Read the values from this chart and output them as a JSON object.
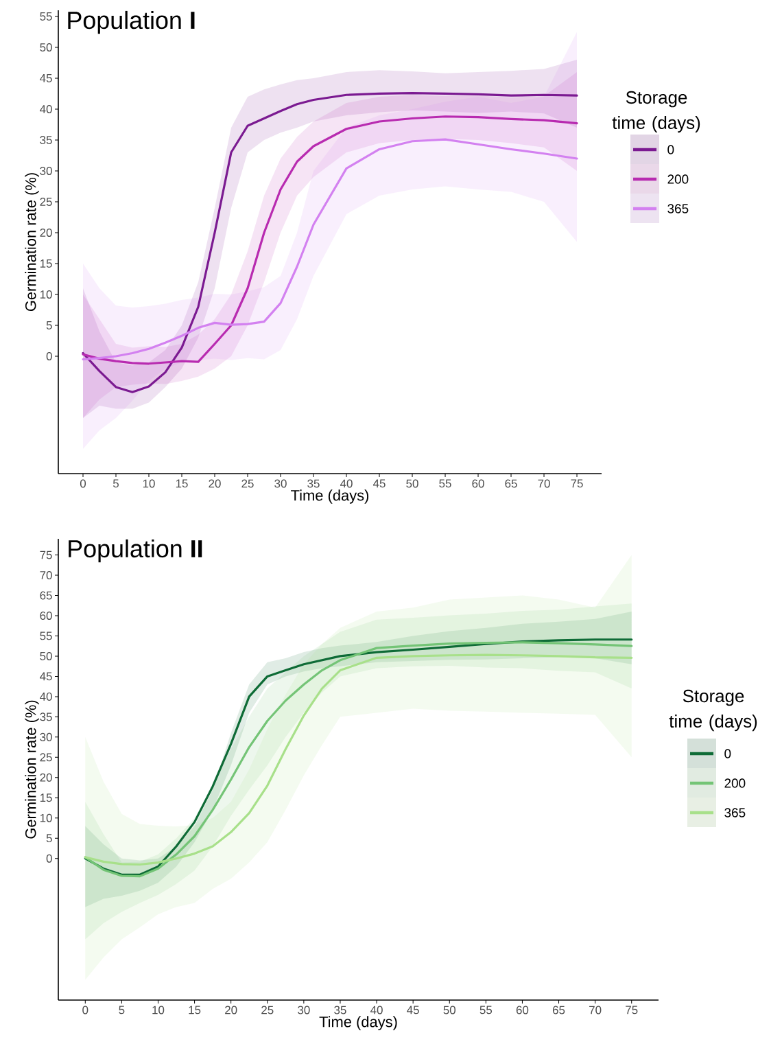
{
  "chart_data": [
    {
      "type": "line",
      "title": "Population **I**",
      "xlabel": "Time (days)",
      "ylabel": "Germination rate (%)",
      "legend_title": "Storage time (days)",
      "legend": "top right",
      "xlim": [
        -3.75,
        78.75
      ],
      "ylim": [
        -19,
        56
      ],
      "xticks": [
        0,
        5,
        10,
        15,
        20,
        25,
        30,
        35,
        40,
        45,
        50,
        55,
        60,
        65,
        70,
        75
      ],
      "yticks": [
        0,
        5,
        10,
        15,
        20,
        25,
        30,
        35,
        40,
        45,
        50,
        55
      ],
      "x": [
        0,
        2.5,
        5,
        7.5,
        10,
        12.5,
        15,
        17.5,
        20,
        22.5,
        25,
        27.5,
        30,
        32.5,
        35,
        40,
        45,
        50,
        55,
        60,
        65,
        70,
        75
      ],
      "series": [
        {
          "name": "0",
          "color": "#7b1a91",
          "values": [
            0.5,
            -2.4,
            -5.0,
            -5.8,
            -4.9,
            -2.6,
            1.4,
            8,
            20,
            33,
            37.3,
            38.5,
            39.7,
            40.8,
            41.5,
            42.3,
            42.5,
            42.6,
            42.5,
            42.4,
            42.2,
            42.3,
            42.2
          ],
          "lower": [
            -10,
            -8,
            -8.5,
            -8.5,
            -7.5,
            -5,
            -2,
            3,
            11,
            24,
            33,
            35,
            36.2,
            37,
            38,
            39,
            39.5,
            39.8,
            39.6,
            39.4,
            39.6,
            39.3,
            37
          ],
          "upper": [
            11,
            4,
            -1,
            -1.5,
            -1,
            1,
            5,
            12,
            24,
            37,
            42,
            43.2,
            44,
            44.7,
            45,
            46,
            46.3,
            46.1,
            45.8,
            46,
            46.2,
            46.5,
            48
          ]
        },
        {
          "name": "200",
          "color": "#b82bb0",
          "values": [
            0.3,
            -0.4,
            -0.8,
            -1.1,
            -1.2,
            -1.0,
            -0.8,
            -0.9,
            2,
            5,
            11,
            20,
            27,
            31.5,
            34,
            36.8,
            38,
            38.5,
            38.8,
            38.7,
            38.4,
            38.2,
            37.7
          ],
          "lower": [
            -10,
            -7,
            -5,
            -4.6,
            -4.4,
            -4.5,
            -4,
            -3.3,
            -2,
            0,
            5,
            12,
            20,
            26,
            29,
            33,
            34.5,
            35,
            35.2,
            35,
            34.5,
            33.8,
            30
          ],
          "upper": [
            10,
            6,
            2,
            1.4,
            1.6,
            1.5,
            2,
            3.5,
            6,
            10,
            17,
            26,
            32,
            35.5,
            38,
            41,
            42,
            42.3,
            42.1,
            42.2,
            41.9,
            42.1,
            46
          ]
        },
        {
          "name": "365",
          "color": "#d381f0",
          "values": [
            -0.5,
            -0.3,
            0,
            0.5,
            1.2,
            2.2,
            3.3,
            4.6,
            5.4,
            5.1,
            5.2,
            5.6,
            8.6,
            14.5,
            21.3,
            30.4,
            33.5,
            34.8,
            35.1,
            34.3,
            33.5,
            32.8,
            32.0
          ],
          "lower": [
            -15,
            -12,
            -10,
            -7.2,
            -4,
            -2,
            -1,
            -0.6,
            -0.4,
            -0.6,
            -0.3,
            -0.5,
            1,
            6,
            13,
            23,
            26,
            27,
            27.5,
            27,
            26.6,
            25,
            18.5
          ],
          "upper": [
            15,
            11,
            8.2,
            7.9,
            8.1,
            8.5,
            9.1,
            9.5,
            10.1,
            10,
            10.5,
            11.2,
            13,
            20,
            30,
            37,
            39,
            40,
            41.2,
            42,
            41,
            42,
            52.5
          ]
        }
      ]
    },
    {
      "type": "line",
      "title": "Population **II**",
      "xlabel": "Time (days)",
      "ylabel": "Germination rate (%)",
      "legend_title": "Storage time (days)",
      "legend": "right",
      "xlim": [
        -3.7,
        78.7
      ],
      "ylim": [
        -35,
        79
      ],
      "xticks": [
        0,
        5,
        10,
        15,
        20,
        25,
        30,
        35,
        40,
        45,
        50,
        55,
        60,
        65,
        70,
        75
      ],
      "yticks": [
        0,
        5,
        10,
        15,
        20,
        25,
        30,
        35,
        40,
        45,
        50,
        55,
        60,
        65,
        70,
        75
      ],
      "x": [
        0,
        2.5,
        5,
        7.5,
        10,
        12.5,
        15,
        17.5,
        20,
        22.5,
        25,
        27.5,
        30,
        32.5,
        35,
        40,
        45,
        50,
        55,
        60,
        65,
        70,
        75
      ],
      "series": [
        {
          "name": "0",
          "color": "#0e6b36",
          "values": [
            0,
            -2.5,
            -4,
            -4,
            -2,
            3,
            9,
            17.8,
            28.3,
            40,
            45,
            46.5,
            48,
            49,
            50,
            51,
            51.6,
            52.3,
            53,
            53.6,
            53.9,
            54.1,
            54.1
          ],
          "lower": [
            -12,
            -10,
            -9.2,
            -8,
            -6,
            -2,
            4,
            12,
            23,
            36,
            43,
            45,
            46.2,
            47,
            47.5,
            48.5,
            48.8,
            49.1,
            49.2,
            49.5,
            49.7,
            49.5,
            48
          ],
          "upper": [
            8,
            3.5,
            0,
            -0.5,
            0,
            3,
            8,
            17,
            31,
            43,
            48.5,
            49.5,
            51,
            52,
            52.6,
            53.5,
            55,
            56.2,
            57,
            58,
            58.5,
            59.2,
            61
          ]
        },
        {
          "name": "200",
          "color": "#74c476",
          "values": [
            0.3,
            -2.8,
            -4.3,
            -4.4,
            -2.5,
            1,
            5.5,
            12,
            19.5,
            27.5,
            34,
            39,
            43,
            46.5,
            49,
            52,
            52.6,
            53.1,
            53.3,
            53.4,
            53.2,
            52.9,
            52.5
          ],
          "lower": [
            -20,
            -16,
            -13.2,
            -11,
            -9,
            -6.3,
            -3,
            3,
            10.5,
            17,
            23,
            30,
            36,
            41,
            45,
            47,
            47.5,
            47.6,
            47.2,
            47,
            46.4,
            46,
            42
          ],
          "upper": [
            14,
            6,
            -1,
            -0.8,
            1,
            5,
            10,
            18,
            27,
            35,
            42,
            46,
            50,
            53,
            56,
            59,
            59.5,
            60.1,
            60.5,
            61.2,
            61.5,
            62.3,
            63
          ]
        },
        {
          "name": "365",
          "color": "#a8e08a",
          "values": [
            0.3,
            -0.8,
            -1.4,
            -1.5,
            -1,
            0,
            1.2,
            3,
            6.5,
            11.2,
            18,
            27,
            35.3,
            42,
            46.5,
            49.6,
            50,
            50.2,
            50.3,
            50.2,
            50,
            49.7,
            49.6
          ],
          "lower": [
            -30,
            -24.5,
            -20,
            -17,
            -13.8,
            -12,
            -11,
            -7.5,
            -5,
            -1,
            4,
            12,
            20.5,
            28,
            35,
            36,
            37,
            36.5,
            36.3,
            36,
            35.8,
            35.5,
            25
          ],
          "upper": [
            30,
            19,
            11,
            8.5,
            8.1,
            7.9,
            8.2,
            10,
            14,
            22,
            32,
            40.5,
            48,
            53,
            57,
            61,
            62,
            64,
            64.5,
            65,
            64,
            62,
            75
          ]
        }
      ]
    }
  ]
}
